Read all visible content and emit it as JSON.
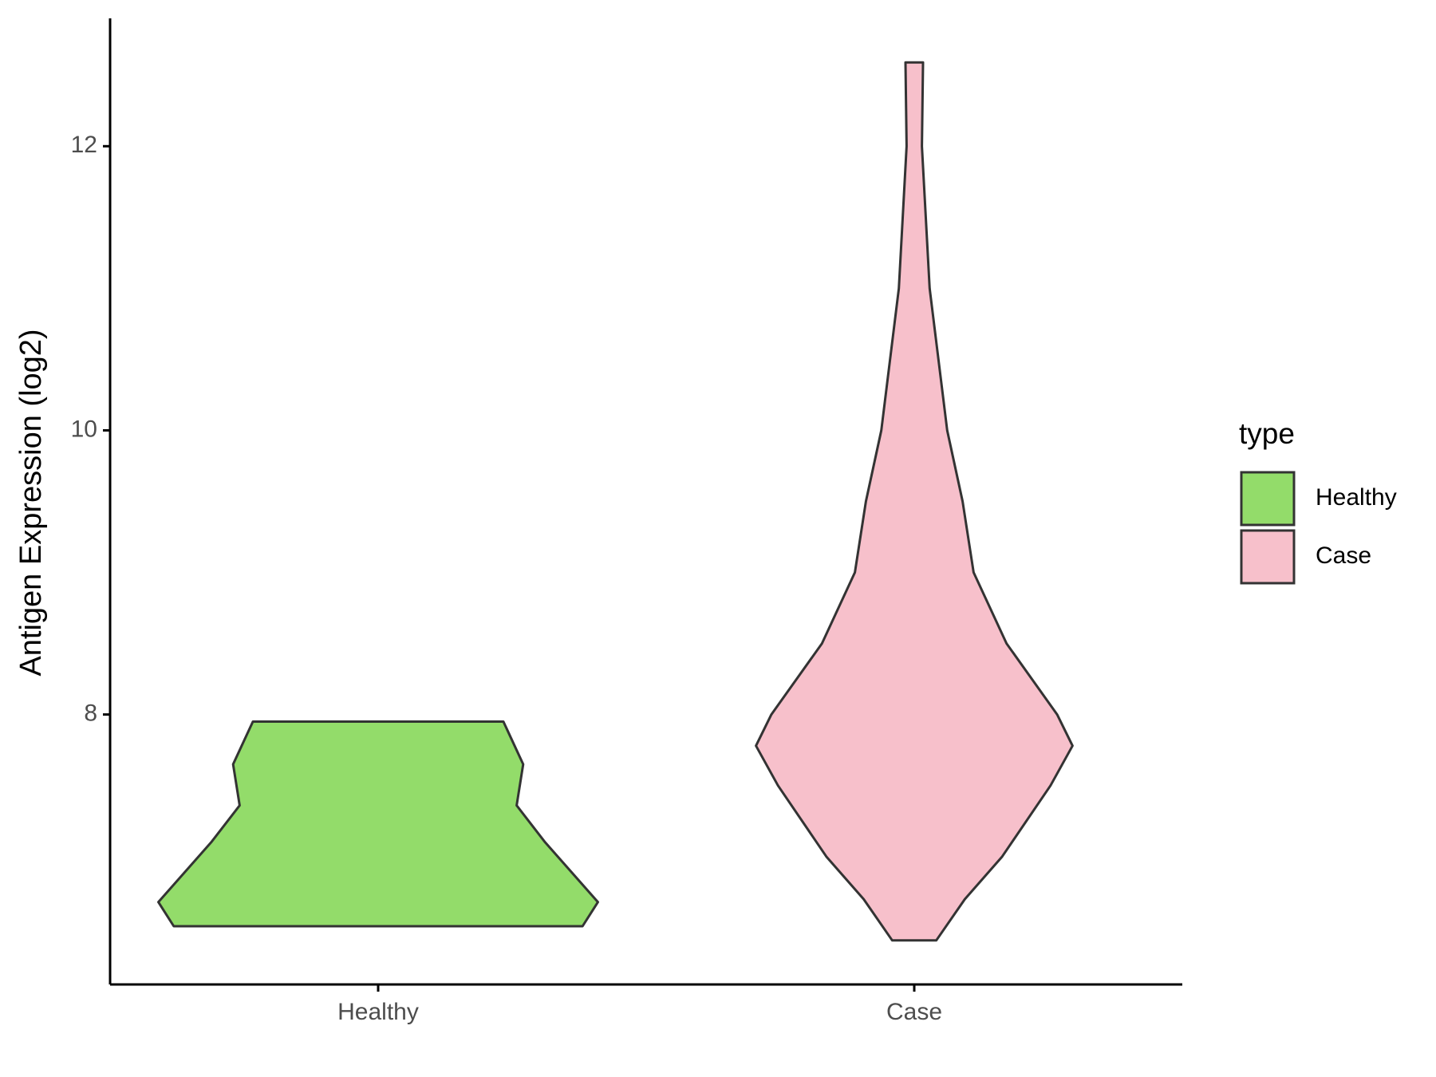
{
  "chart_data": {
    "type": "violin",
    "y_label": "Antigen Expression (log2)",
    "categories": [
      "Healthy",
      "Case"
    ],
    "legend_title": "type",
    "series": [
      {
        "name": "Healthy",
        "color": "#93dc6a",
        "y": [
          7.95,
          7.65,
          7.36,
          7.1,
          6.68,
          6.51
        ],
        "density": [
          0.57,
          0.66,
          0.63,
          0.76,
          1.0,
          0.93
        ]
      },
      {
        "name": "Case",
        "color": "#f7c0cb",
        "y": [
          12.59,
          12.0,
          11.0,
          10.5,
          10.0,
          9.5,
          9.0,
          8.5,
          8.0,
          7.78,
          7.5,
          7.0,
          6.7,
          6.41
        ],
        "density": [
          0.04,
          0.035,
          0.07,
          0.11,
          0.15,
          0.22,
          0.27,
          0.42,
          0.65,
          0.72,
          0.62,
          0.4,
          0.23,
          0.1
        ]
      }
    ],
    "ylim": [
      6.1,
      12.9
    ],
    "yticks": [
      8,
      10,
      12
    ],
    "legend_position": "right"
  }
}
